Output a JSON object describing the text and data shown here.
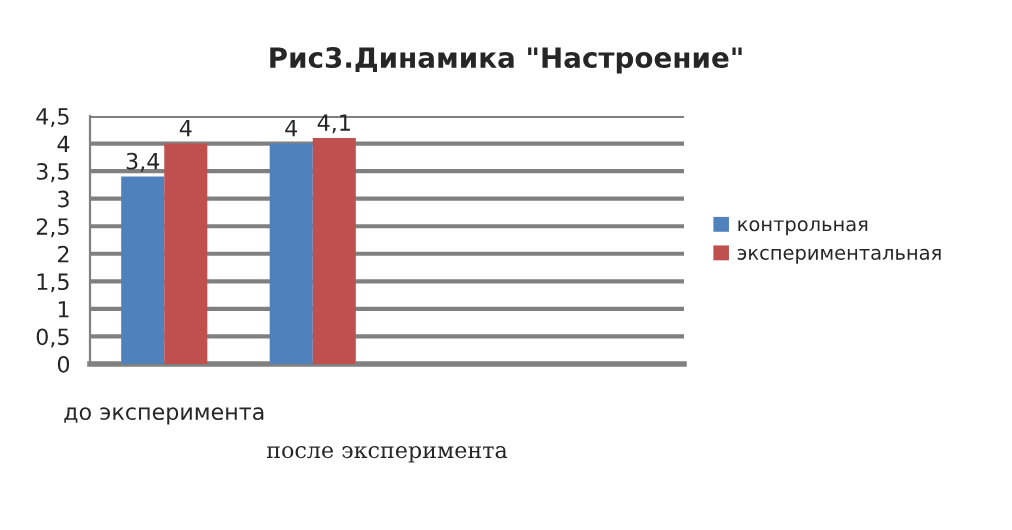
{
  "chart_data": {
    "type": "bar",
    "title": "Рис3.Динамика \"Настроение\"",
    "xlabel": "после эксперимента",
    "categories": [
      "до эксперимента",
      null,
      null,
      null
    ],
    "series": [
      {
        "name": "контрольная",
        "color": "#4f81bd",
        "values": [
          3.4,
          4,
          null,
          null
        ],
        "value_labels": [
          "3,4",
          "4",
          null,
          null
        ]
      },
      {
        "name": "экспериментальная",
        "color": "#c0504d",
        "values": [
          4,
          4.1,
          null,
          null
        ],
        "value_labels": [
          "4",
          "4,1",
          null,
          null
        ]
      }
    ],
    "ylim": [
      0,
      4.5
    ],
    "yticks": [
      0,
      {
        "value": 0.5,
        "label": "0,5"
      },
      1,
      {
        "value": 1.5,
        "label": "1,5"
      },
      2,
      {
        "value": 2.5,
        "label": "2,5"
      },
      3,
      {
        "value": 3.5,
        "label": "3,5"
      },
      4,
      {
        "value": 4.5,
        "label": "4,5"
      }
    ],
    "grid": "y",
    "legend": "right"
  }
}
